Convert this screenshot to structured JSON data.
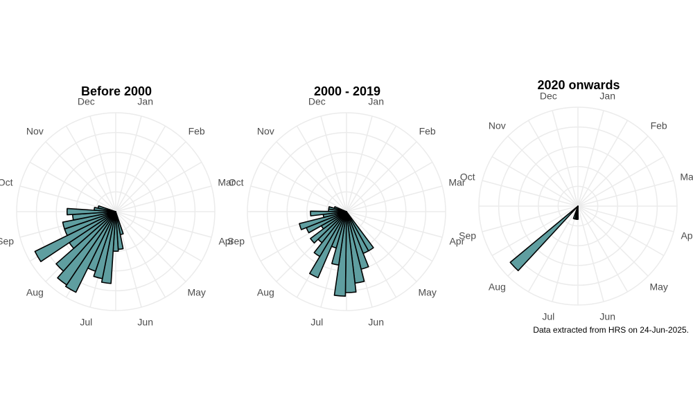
{
  "caption": "Data extracted from HRS on 24-Jun-2025.",
  "months": [
    "Jan",
    "Feb",
    "Mar",
    "Apr",
    "May",
    "Jun",
    "Jul",
    "Aug",
    "Sep",
    "Oct",
    "Nov",
    "Dec"
  ],
  "colors": {
    "bar_fill": "#5f9ea0",
    "bar_stroke": "#000000",
    "grid": "#ebebeb",
    "label": "#4d4d4d"
  },
  "chart_data": [
    {
      "type": "bar",
      "coord": "polar",
      "title": "Before 2000",
      "x": [
        5.5,
        5.75,
        6.0,
        6.25,
        6.5,
        6.75,
        7.0,
        7.25,
        7.5,
        7.75,
        8.0,
        8.25,
        8.5,
        8.75,
        9.0,
        9.25,
        9.5
      ],
      "values": [
        1.3,
        2.1,
        2.2,
        4.0,
        3.8,
        3.5,
        5.0,
        4.9,
        4.4,
        3.1,
        5.0,
        3.0,
        3.0,
        2.4,
        2.7,
        1.2,
        1.0
      ],
      "ylim": [
        0,
        5.5
      ],
      "grid": true
    },
    {
      "type": "bar",
      "coord": "polar",
      "title": "2000 - 2019",
      "x": [
        4.9,
        5.15,
        5.4,
        5.65,
        5.9,
        6.15,
        6.4,
        6.65,
        6.9,
        7.15,
        7.4,
        7.65,
        7.9,
        8.15,
        8.4,
        8.65,
        8.9,
        9.15,
        9.4,
        9.65
      ],
      "values": [
        2.5,
        2.5,
        3.3,
        4.0,
        4.5,
        4.7,
        3.0,
        2.1,
        4.0,
        2.9,
        2.2,
        2.5,
        1.6,
        2.4,
        2.7,
        1.3,
        2.0,
        1.0,
        1.0,
        0.7
      ],
      "ylim": [
        0,
        5.5
      ],
      "grid": true
    },
    {
      "type": "bar",
      "coord": "polar",
      "title": "2020 onwards",
      "x": [
        6.1,
        6.25,
        6.4,
        6.55,
        7.55
      ],
      "values": [
        0.6,
        0.6,
        0.6,
        0.6,
        4.0
      ],
      "ylim": [
        0,
        4.5
      ],
      "grid": true
    }
  ]
}
